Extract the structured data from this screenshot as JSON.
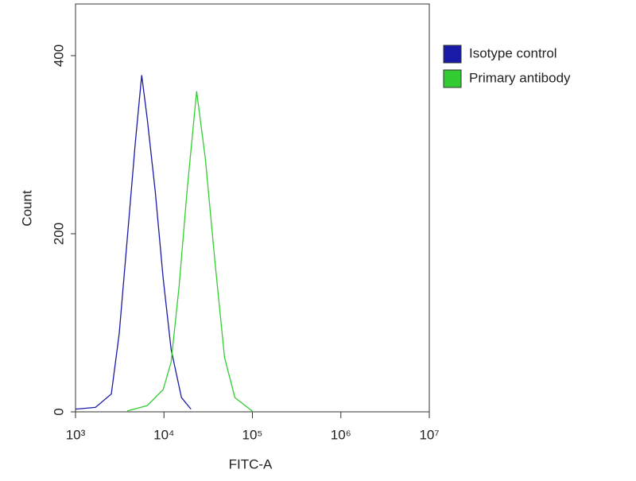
{
  "chart_data": {
    "type": "line",
    "xlabel": "FITC-A",
    "ylabel": "Count",
    "xscale": "log",
    "xlim": [
      1000,
      10000000
    ],
    "xticks": [
      {
        "value": 1000,
        "label": "10³"
      },
      {
        "value": 10000,
        "label": "10⁴"
      },
      {
        "value": 100000,
        "label": "10⁵"
      },
      {
        "value": 1000000,
        "label": "10⁶"
      },
      {
        "value": 10000000,
        "label": "10⁷"
      }
    ],
    "ylim": [
      0,
      458
    ],
    "yticks": [
      0,
      200,
      400
    ],
    "legend": "outside-right-top",
    "series": [
      {
        "name": "Isotype control",
        "color": "#1a1aa8",
        "x": [
          1000,
          1680,
          2540,
          3120,
          3850,
          4740,
          5600,
          6470,
          7960,
          9790,
          12050,
          15780,
          20200
        ],
        "values": [
          3,
          5,
          20,
          88,
          195,
          302,
          378,
          329,
          248,
          150,
          70,
          16,
          3
        ]
      },
      {
        "name": "Primary antibody",
        "color": "#33cc33",
        "x": [
          3850,
          6470,
          9790,
          12050,
          14830,
          18240,
          23400,
          29380,
          37760,
          48420,
          63390,
          102000
        ],
        "values": [
          1,
          7,
          25,
          56,
          141,
          248,
          360,
          284,
          168,
          61,
          16,
          0
        ]
      }
    ]
  }
}
